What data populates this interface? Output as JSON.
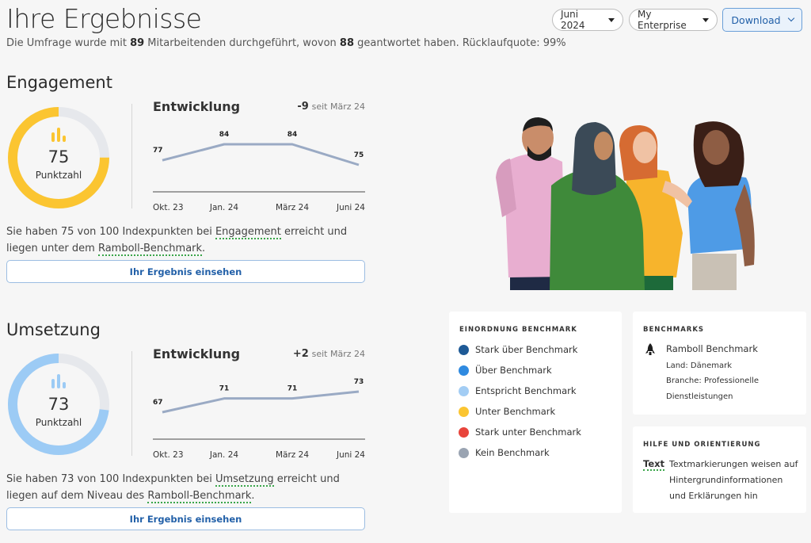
{
  "header": {
    "title": "Ihre Ergebnisse",
    "subtitle_pre": "Die Umfrage wurde mit ",
    "participants": "89",
    "subtitle_mid": " Mitarbeitenden durchgeführt, wovon ",
    "respondents": "88",
    "subtitle_post": " geantwortet haben. Rücklaufquote: 99%",
    "period": "Juni 2024",
    "organisation": "My Enterprise",
    "download_label": "Download"
  },
  "sections": [
    {
      "title": "Engagement",
      "score": "75",
      "score_fraction": 0.75,
      "score_label": "Punktzahl",
      "color": "#fbc531",
      "track_color": "#e6e8ec",
      "trend_title": "Entwicklung",
      "delta": "-9",
      "delta_suffix": "seit März 24",
      "chart_data": {
        "type": "line",
        "categories": [
          "Okt. 23",
          "Jan. 24",
          "März 24",
          "Juni 24"
        ],
        "values": [
          77,
          84,
          84,
          75
        ],
        "data_labels": [
          "77",
          "84",
          "84",
          "75"
        ]
      },
      "desc_pre": "Sie haben 75 von 100 Indexpunkten bei ",
      "desc_link1": "Engagement",
      "desc_mid": " erreicht und liegen unter dem ",
      "desc_link2": "Ramboll-Benchmark",
      "desc_post": ".",
      "button_label": "Ihr Ergebnis einsehen"
    },
    {
      "title": "Umsetzung",
      "score": "73",
      "score_fraction": 0.73,
      "score_label": "Punktzahl",
      "color": "#9ccbf5",
      "track_color": "#e6e8ec",
      "trend_title": "Entwicklung",
      "delta": "+2",
      "delta_suffix": "seit März 24",
      "chart_data": {
        "type": "line",
        "categories": [
          "Okt. 23",
          "Jan. 24",
          "März 24",
          "Juni 24"
        ],
        "values": [
          67,
          71,
          71,
          73
        ],
        "data_labels": [
          "67",
          "71",
          "71",
          "73"
        ]
      },
      "desc_pre": "Sie haben 73 von 100 Indexpunkten bei ",
      "desc_link1": "Umsetzung",
      "desc_mid": " erreicht und liegen auf dem Niveau des ",
      "desc_link2": "Ramboll-Benchmark",
      "desc_post": ".",
      "button_label": "Ihr Ergebnis einsehen"
    }
  ],
  "legend": {
    "heading": "EINORDNUNG BENCHMARK",
    "items": [
      {
        "label": "Stark über Benchmark",
        "color": "#1e5a96"
      },
      {
        "label": "Über Benchmark",
        "color": "#2f8ae0"
      },
      {
        "label": "Entspricht Benchmark",
        "color": "#a3cdf4"
      },
      {
        "label": "Unter Benchmark",
        "color": "#fbc531"
      },
      {
        "label": "Stark unter Benchmark",
        "color": "#e8453c"
      },
      {
        "label": "Kein Benchmark",
        "color": "#9aa4b2"
      }
    ]
  },
  "benchmarks": {
    "heading": "BENCHMARKS",
    "icon": "rocket-icon",
    "name": "Ramboll Benchmark",
    "land": "Land: Dänemark",
    "branche1": "Branche: Professionelle",
    "branche2": "Dienstleistungen"
  },
  "help": {
    "heading": "HILFE UND ORIENTIERUNG",
    "sample": "Text",
    "line1": "Textmarkierungen weisen auf",
    "line2": "Hintergrundinformationen",
    "line3": "und Erklärungen hin"
  }
}
